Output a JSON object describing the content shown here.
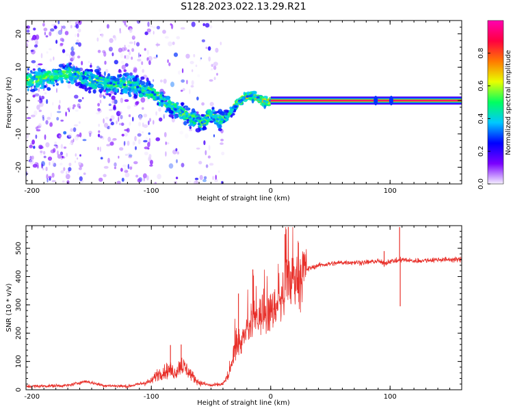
{
  "page": {
    "title": "S128.2023.022.13.29.R21"
  },
  "chart_data": [
    {
      "type": "heatmap",
      "title": "S128.2023.022.13.29.R21",
      "xlabel": "Height of straight line (km)",
      "ylabel": "Frequency (Hz)",
      "xlim": [
        -205,
        160
      ],
      "ylim": [
        -25,
        24
      ],
      "x_ticks": [
        -200,
        -100,
        0,
        100
      ],
      "y_ticks": [
        -20,
        -10,
        0,
        10,
        20
      ],
      "ridge": {
        "x": [
          -200,
          -180,
          -165,
          -150,
          -130,
          -115,
          -100,
          -85,
          -70,
          -58,
          -50,
          -43,
          -36,
          -30,
          -24,
          -18,
          -12,
          -8,
          -4,
          0,
          20,
          60,
          100,
          160
        ],
        "y": [
          6,
          7.5,
          8,
          6,
          5,
          4.5,
          2.5,
          -1.5,
          -4.5,
          -7,
          -4,
          -6,
          -4.5,
          -2,
          0.5,
          1.5,
          1,
          0,
          -0.5,
          0,
          0,
          0,
          0,
          0
        ]
      },
      "colorbar": {
        "label": "Normalized spectral amplitude",
        "range": [
          0,
          1
        ],
        "ticks": [
          0.0,
          0.2,
          0.4,
          0.6,
          0.8
        ],
        "tick_labels": [
          "0.0",
          "0.2",
          "0.4",
          "0.6",
          "0.8"
        ],
        "colors": [
          "#f5f0ff",
          "#7a00ff",
          "#0000ff",
          "#00c8ff",
          "#00ff60",
          "#e8ff00",
          "#ff7a00",
          "#ff0040",
          "#ff00b0"
        ]
      }
    },
    {
      "type": "line",
      "xlabel": "Height of straight line (km)",
      "ylabel": "SNR (10 * v/v)",
      "xlim": [
        -205,
        160
      ],
      "ylim": [
        0,
        580
      ],
      "x_ticks": [
        -200,
        -100,
        0,
        100
      ],
      "y_ticks": [
        0,
        100,
        200,
        300,
        400,
        500
      ],
      "color": "#e8302a",
      "series": [
        {
          "name": "SNR",
          "x": [
            -205,
            -170,
            -155,
            -150,
            -140,
            -120,
            -110,
            -100,
            -95,
            -85,
            -80,
            -75,
            -70,
            -65,
            -60,
            -50,
            -40,
            -35,
            -30,
            -25,
            -20,
            -15,
            -10,
            -5,
            0,
            5,
            10,
            12,
            15,
            20,
            25,
            30,
            40,
            60,
            80,
            90,
            95,
            100,
            105,
            110,
            120,
            140,
            160
          ],
          "y": [
            12,
            15,
            30,
            25,
            15,
            12,
            20,
            30,
            55,
            70,
            60,
            90,
            70,
            45,
            25,
            15,
            20,
            50,
            140,
            170,
            200,
            240,
            260,
            270,
            270,
            300,
            330,
            360,
            380,
            400,
            410,
            425,
            440,
            450,
            450,
            455,
            445,
            455,
            455,
            460,
            455,
            460,
            460
          ],
          "spikes": [
            {
              "x": 12,
              "y": 550
            },
            {
              "x": 108,
              "y": 575
            },
            {
              "x": 108.5,
              "y": 295
            },
            {
              "x": -75,
              "y": 160
            },
            {
              "x": -84,
              "y": 158
            },
            {
              "x": -15,
              "y": 425
            },
            {
              "x": -27,
              "y": 340
            },
            {
              "x": 95,
              "y": 490
            }
          ]
        }
      ]
    }
  ]
}
